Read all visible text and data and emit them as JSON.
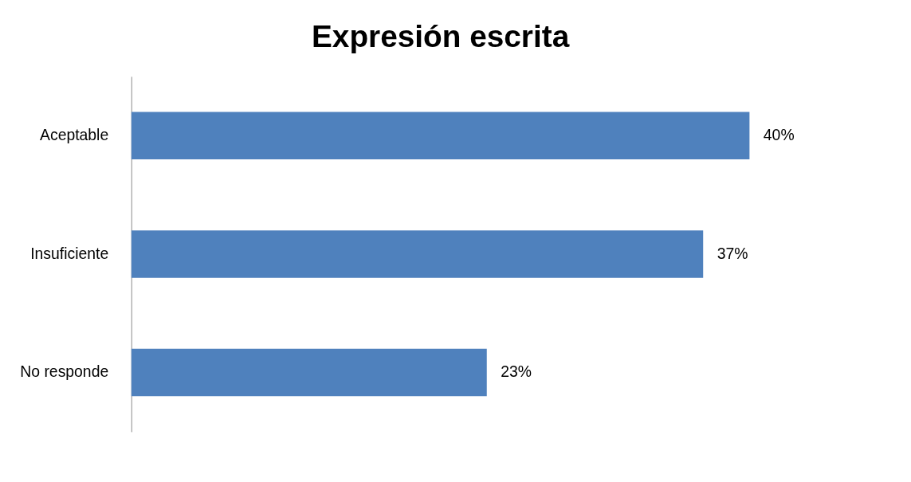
{
  "chart_data": {
    "type": "bar",
    "title": "Expresión escrita",
    "orientation": "horizontal",
    "categories": [
      "Aceptable",
      "Insuficiente",
      "No responde"
    ],
    "values": [
      40,
      37,
      23
    ],
    "color": "#4f81bd",
    "value_labels": [
      "40%",
      "37%",
      "23%"
    ]
  }
}
